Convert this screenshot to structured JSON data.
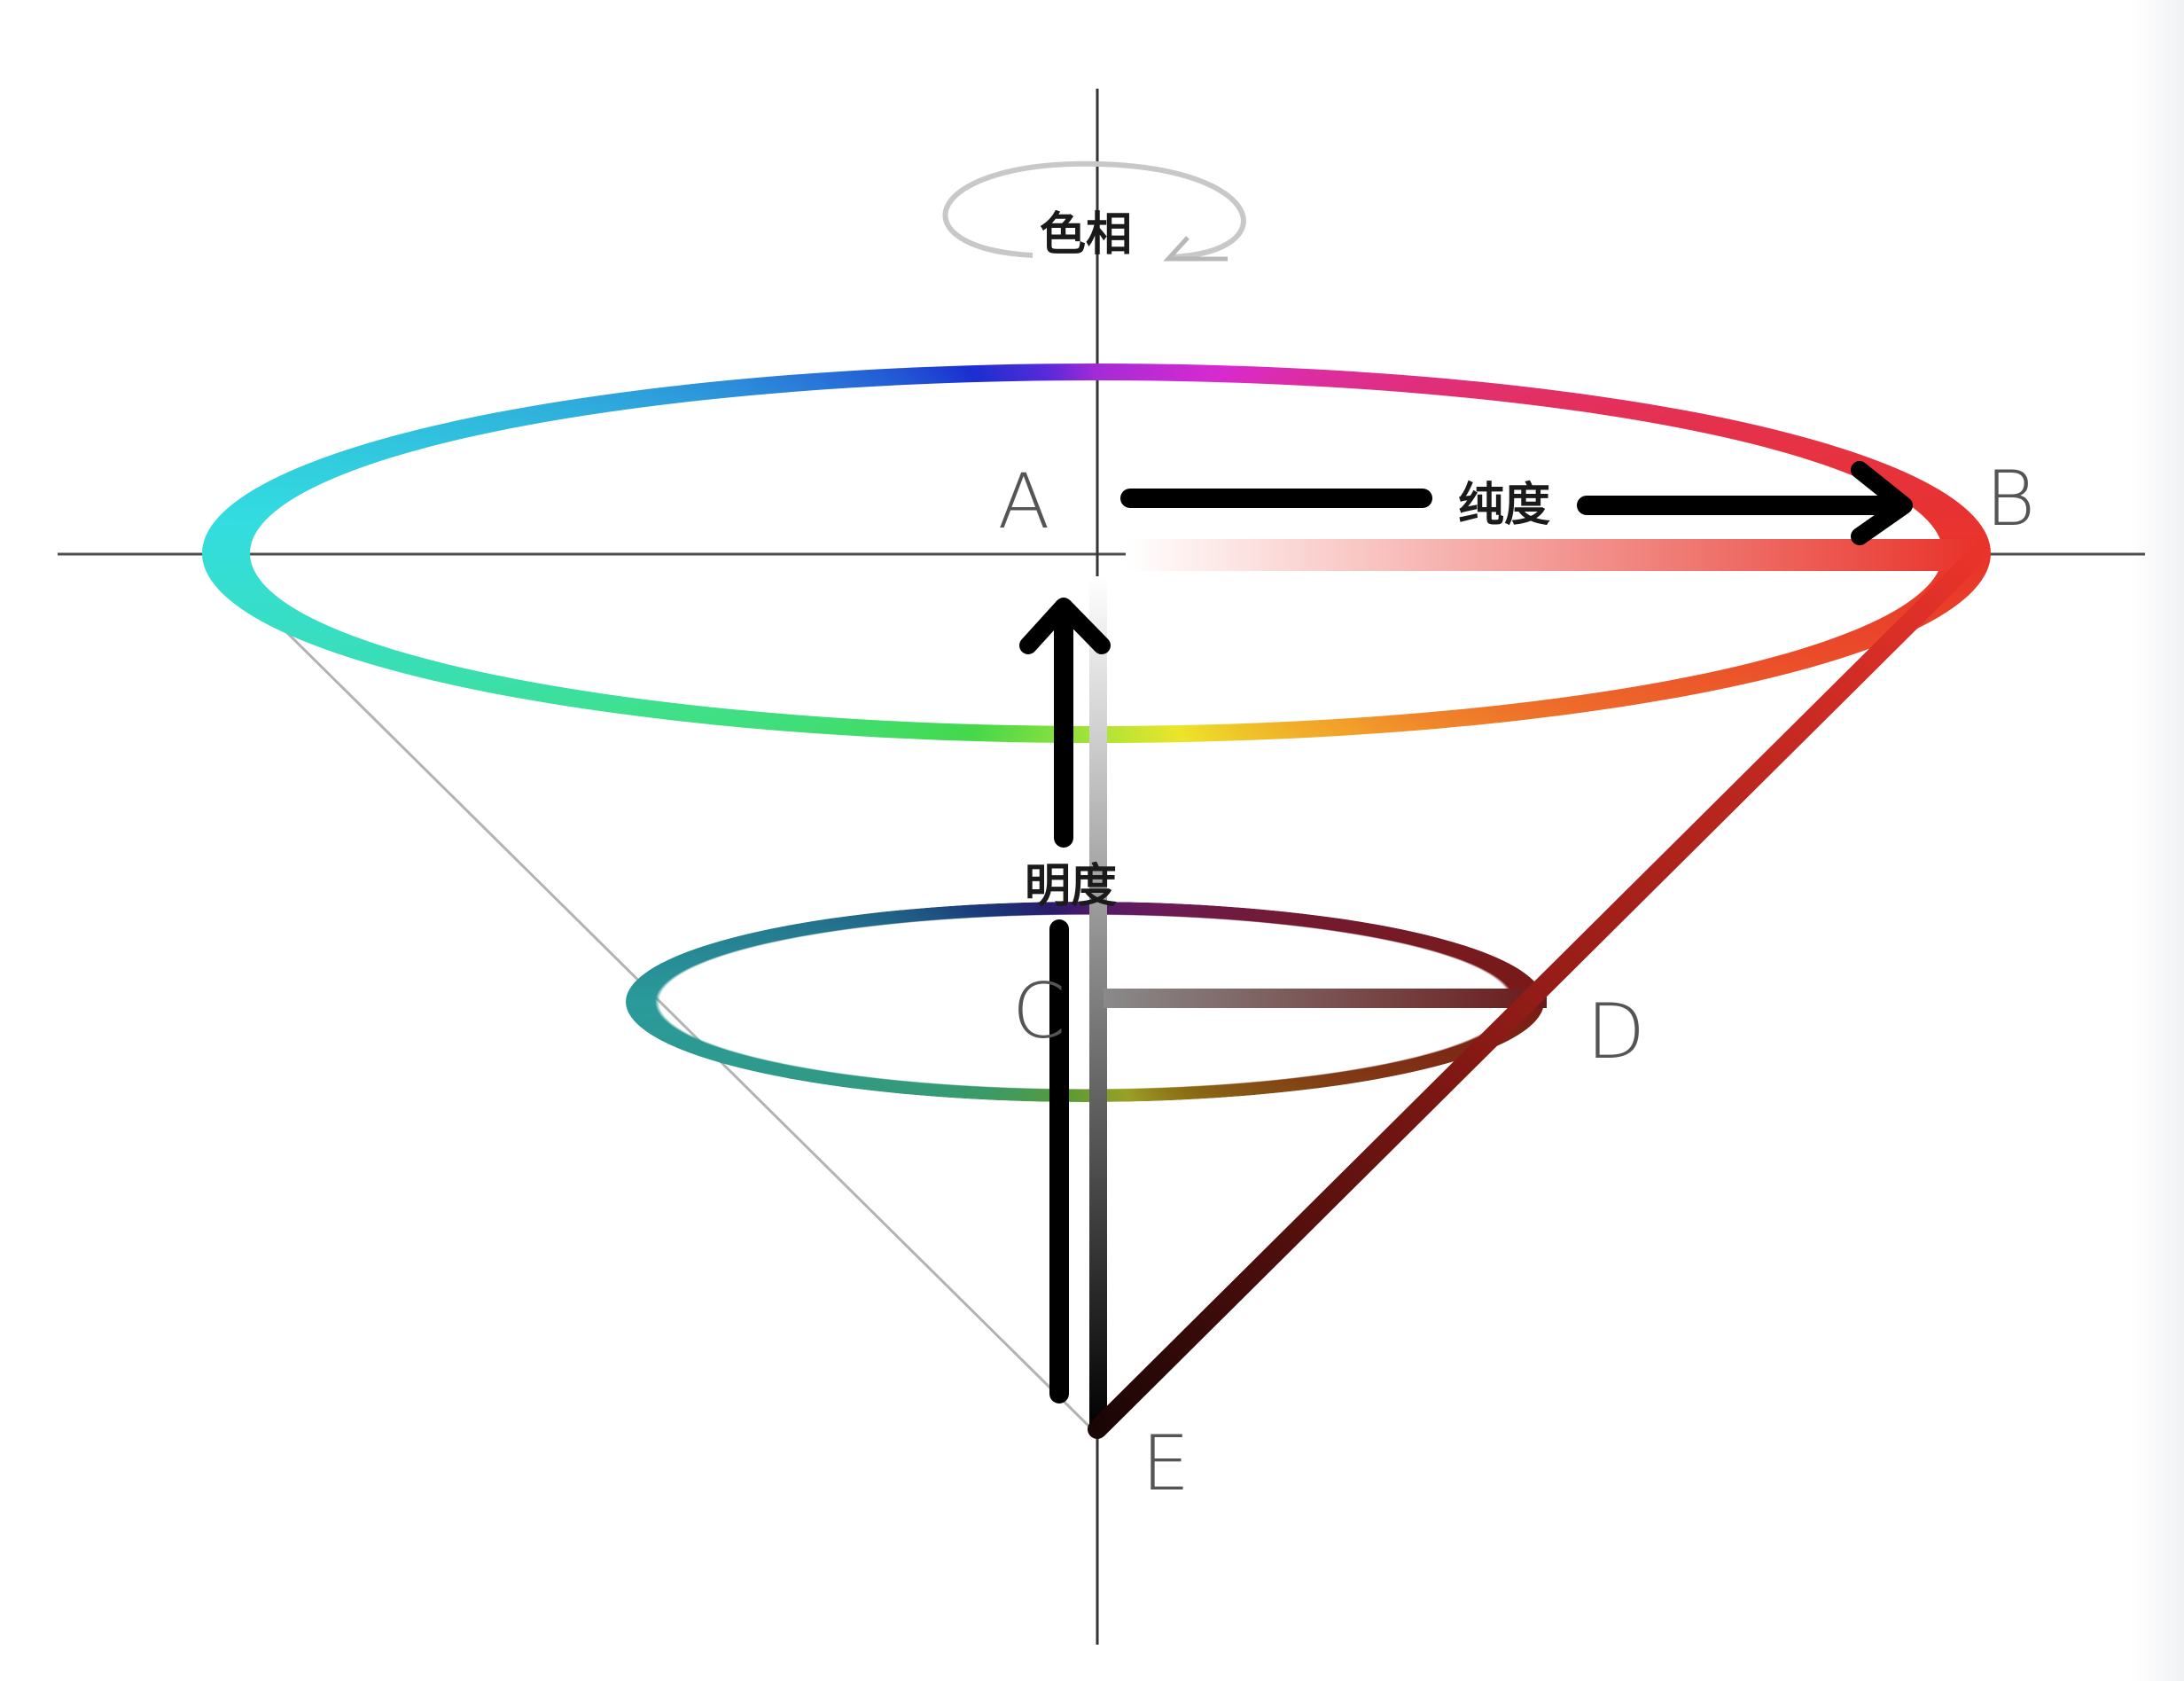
{
  "labels": {
    "hue": "色相",
    "saturation": "纯度",
    "lightness": "明度"
  },
  "points": {
    "a": "A",
    "b": "B",
    "c": "C",
    "d": "D",
    "e": "E"
  },
  "colors": {
    "axis": "#333333",
    "cone_edge": "#b3b3b3",
    "arrow": "#000000",
    "saturation_end": "#e8332a",
    "cone_dark_red": "#3a0808",
    "lightness_top": "#ffffff",
    "lightness_bottom": "#000000",
    "hue_ring": [
      "#33dde0",
      "#1a2fd0",
      "#c22ad8",
      "#e8332a",
      "#ece52a",
      "#45d84a"
    ]
  }
}
